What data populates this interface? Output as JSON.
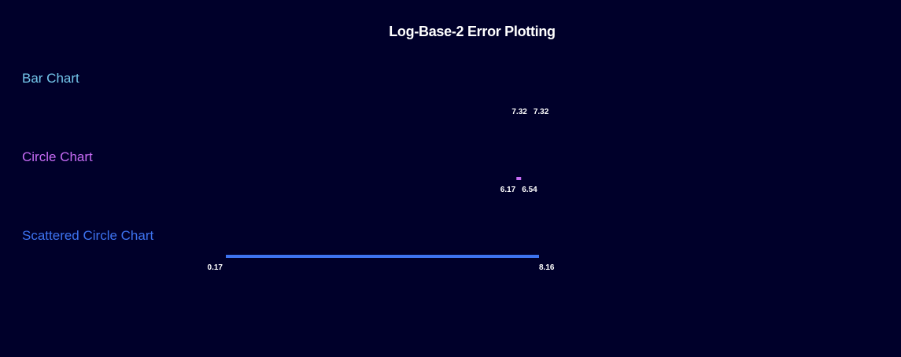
{
  "chart_data": {
    "type": "error-range",
    "title": "Log-Base-2 Error Plotting",
    "scale": "log2",
    "series": [
      {
        "name": "Bar Chart",
        "color": "#74c7ec",
        "low": 7.32,
        "high": 7.32,
        "low_label": "7.32",
        "high_label": "7.32"
      },
      {
        "name": "Circle Chart",
        "color": "#c76bf5",
        "low": 6.17,
        "high": 6.54,
        "low_label": "6.17",
        "high_label": "6.54"
      },
      {
        "name": "Scattered Circle Chart",
        "color": "#3d73f0",
        "low": 0.17,
        "high": 8.16,
        "low_label": "0.17",
        "high_label": "8.16"
      }
    ]
  }
}
